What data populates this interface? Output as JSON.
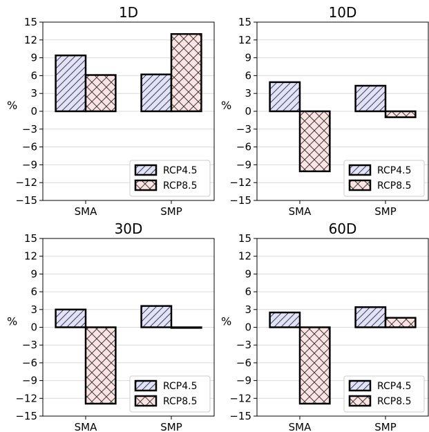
{
  "chart_data": [
    {
      "type": "bar",
      "title": "1D",
      "ylabel": "%",
      "categories": [
        "SMA",
        "SMP"
      ],
      "series": [
        {
          "name": "RCP4.5",
          "values": [
            9.4,
            6.2
          ],
          "color": "#e3e3f7",
          "hatch": "diagonal"
        },
        {
          "name": "RCP8.5",
          "values": [
            6.1,
            13.0
          ],
          "color": "#fde3e3",
          "hatch": "cross"
        }
      ],
      "ylim": [
        -15,
        15
      ],
      "yticks": [
        15,
        12,
        9,
        6,
        3,
        0,
        -3,
        -6,
        -9,
        -12,
        -15
      ],
      "grid": true,
      "legend": "bottom-right"
    },
    {
      "type": "bar",
      "title": "10D",
      "ylabel": "%",
      "categories": [
        "SMA",
        "SMP"
      ],
      "series": [
        {
          "name": "RCP4.5",
          "values": [
            4.9,
            4.3
          ],
          "color": "#e3e3f7",
          "hatch": "diagonal"
        },
        {
          "name": "RCP8.5",
          "values": [
            -10.1,
            -1.0
          ],
          "color": "#fde3e3",
          "hatch": "cross"
        }
      ],
      "ylim": [
        -15,
        15
      ],
      "yticks": [
        15,
        12,
        9,
        6,
        3,
        0,
        -3,
        -6,
        -9,
        -12,
        -15
      ],
      "grid": true,
      "legend": "bottom-right"
    },
    {
      "type": "bar",
      "title": "30D",
      "ylabel": "%",
      "categories": [
        "SMA",
        "SMP"
      ],
      "series": [
        {
          "name": "RCP4.5",
          "values": [
            3.0,
            3.6
          ],
          "color": "#e3e3f7",
          "hatch": "diagonal"
        },
        {
          "name": "RCP8.5",
          "values": [
            -12.9,
            -0.1
          ],
          "color": "#fde3e3",
          "hatch": "cross"
        }
      ],
      "ylim": [
        -15,
        15
      ],
      "yticks": [
        15,
        12,
        9,
        6,
        3,
        0,
        -3,
        -6,
        -9,
        -12,
        -15
      ],
      "grid": true,
      "legend": "bottom-right"
    },
    {
      "type": "bar",
      "title": "60D",
      "ylabel": "%",
      "categories": [
        "SMA",
        "SMP"
      ],
      "series": [
        {
          "name": "RCP4.5",
          "values": [
            2.5,
            3.4
          ],
          "color": "#e3e3f7",
          "hatch": "diagonal"
        },
        {
          "name": "RCP8.5",
          "values": [
            -12.9,
            1.6
          ],
          "color": "#fde3e3",
          "hatch": "cross"
        }
      ],
      "ylim": [
        -15,
        15
      ],
      "yticks": [
        15,
        12,
        9,
        6,
        3,
        0,
        -3,
        -6,
        -9,
        -12,
        -15
      ],
      "grid": true,
      "legend": "bottom-right"
    }
  ]
}
